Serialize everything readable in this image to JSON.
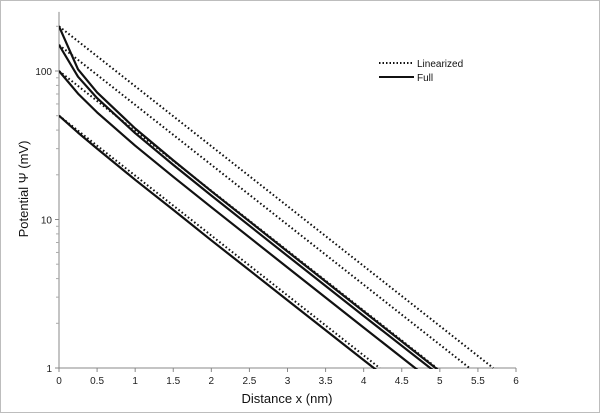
{
  "chart_data": {
    "type": "line",
    "title": "",
    "xlabel": "Distance x (nm)",
    "ylabel": "Potential Ψ (mV)",
    "xlim": [
      0,
      6
    ],
    "ylim": [
      1,
      250
    ],
    "y_scale": "log",
    "grid": false,
    "legend_position": "top-right",
    "x_ticks": [
      "0",
      "0.5",
      "1",
      "1.5",
      "2",
      "2.5",
      "3",
      "3.5",
      "4",
      "4.5",
      "5",
      "5.5",
      "6"
    ],
    "y_ticks": [
      "1",
      "10",
      "100"
    ],
    "legend": [
      {
        "label": "Linearized",
        "style": "dotted"
      },
      {
        "label": "Full",
        "style": "solid"
      }
    ],
    "series": [
      {
        "legend": "Linearized",
        "style": "dotted",
        "x": [
          0,
          5.7
        ],
        "y": [
          200,
          1
        ]
      },
      {
        "legend": "Linearized",
        "style": "dotted",
        "x": [
          0,
          5.39
        ],
        "y": [
          150,
          1
        ]
      },
      {
        "legend": "Linearized",
        "style": "dotted",
        "x": [
          0,
          4.96
        ],
        "y": [
          100,
          1
        ]
      },
      {
        "legend": "Linearized",
        "style": "dotted",
        "x": [
          0,
          4.21
        ],
        "y": [
          50,
          1
        ]
      },
      {
        "legend": "Full",
        "style": "solid",
        "x": [
          0,
          0.25,
          0.5,
          1,
          1.5,
          2,
          3,
          4,
          5
        ],
        "y": [
          200,
          102.6,
          71.8,
          41.0,
          25.0,
          15.5,
          6.09,
          2.4,
          0.95
        ]
      },
      {
        "legend": "Full",
        "style": "solid",
        "x": [
          0,
          0.25,
          0.5,
          1,
          1.5,
          2,
          3,
          4,
          5
        ],
        "y": [
          150,
          91.6,
          65.7,
          38.1,
          23.3,
          14.5,
          5.69,
          2.24,
          0.89
        ]
      },
      {
        "legend": "Full",
        "style": "solid",
        "x": [
          0,
          0.25,
          0.5,
          1,
          1.5,
          2,
          3,
          4,
          5
        ],
        "y": [
          100,
          70.4,
          52.6,
          31.4,
          19.4,
          12.1,
          4.75,
          1.87,
          0.74
        ]
      },
      {
        "legend": "Full",
        "style": "solid",
        "x": [
          0,
          0.25,
          0.5,
          1,
          1.5,
          2,
          3,
          4,
          5
        ],
        "y": [
          50,
          38.5,
          30.0,
          18.5,
          11.6,
          7.24,
          2.86,
          1.13,
          0.45
        ]
      }
    ]
  }
}
